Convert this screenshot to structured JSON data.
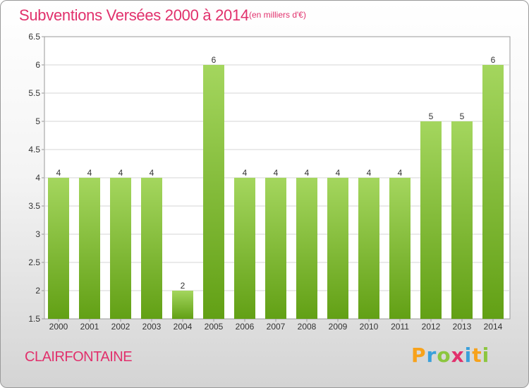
{
  "title": "Subventions Versées 2000 à 2014",
  "subtitle": "(en milliers d'€)",
  "commune": "CLAIRFONTAINE",
  "brand": {
    "letters": [
      "P",
      "r",
      "o",
      "x",
      "i",
      "t",
      "i"
    ],
    "colors": [
      "#f7a21b",
      "#3aa0db",
      "#8cc63f",
      "#e1306c",
      "#3aa0db",
      "#f7a21b",
      "#8cc63f"
    ]
  },
  "colors": {
    "title": "#e1306c",
    "bar_top": "#a4d65e",
    "bar_bottom": "#62a015"
  },
  "chart_data": {
    "type": "bar",
    "categories": [
      "2000",
      "2001",
      "2002",
      "2003",
      "2004",
      "2005",
      "2006",
      "2007",
      "2008",
      "2009",
      "2010",
      "2011",
      "2012",
      "2013",
      "2014"
    ],
    "values": [
      4,
      4,
      4,
      4,
      2,
      6,
      4,
      4,
      4,
      4,
      4,
      4,
      5,
      5,
      6
    ],
    "data_labels": [
      "4",
      "4",
      "4",
      "4",
      "2",
      "6",
      "4",
      "4",
      "4",
      "4",
      "4",
      "4",
      "5",
      "5",
      "6"
    ],
    "ylim": [
      1.5,
      6.5
    ],
    "yticks": [
      1.5,
      2,
      2.5,
      3,
      3.5,
      4,
      4.5,
      5,
      5.5,
      6,
      6.5
    ],
    "ytick_labels": [
      "1.5",
      "2",
      "2.5",
      "3",
      "3.5",
      "4",
      "4.5",
      "5",
      "5.5",
      "6",
      "6.5"
    ],
    "grid": true,
    "legend": "none"
  }
}
